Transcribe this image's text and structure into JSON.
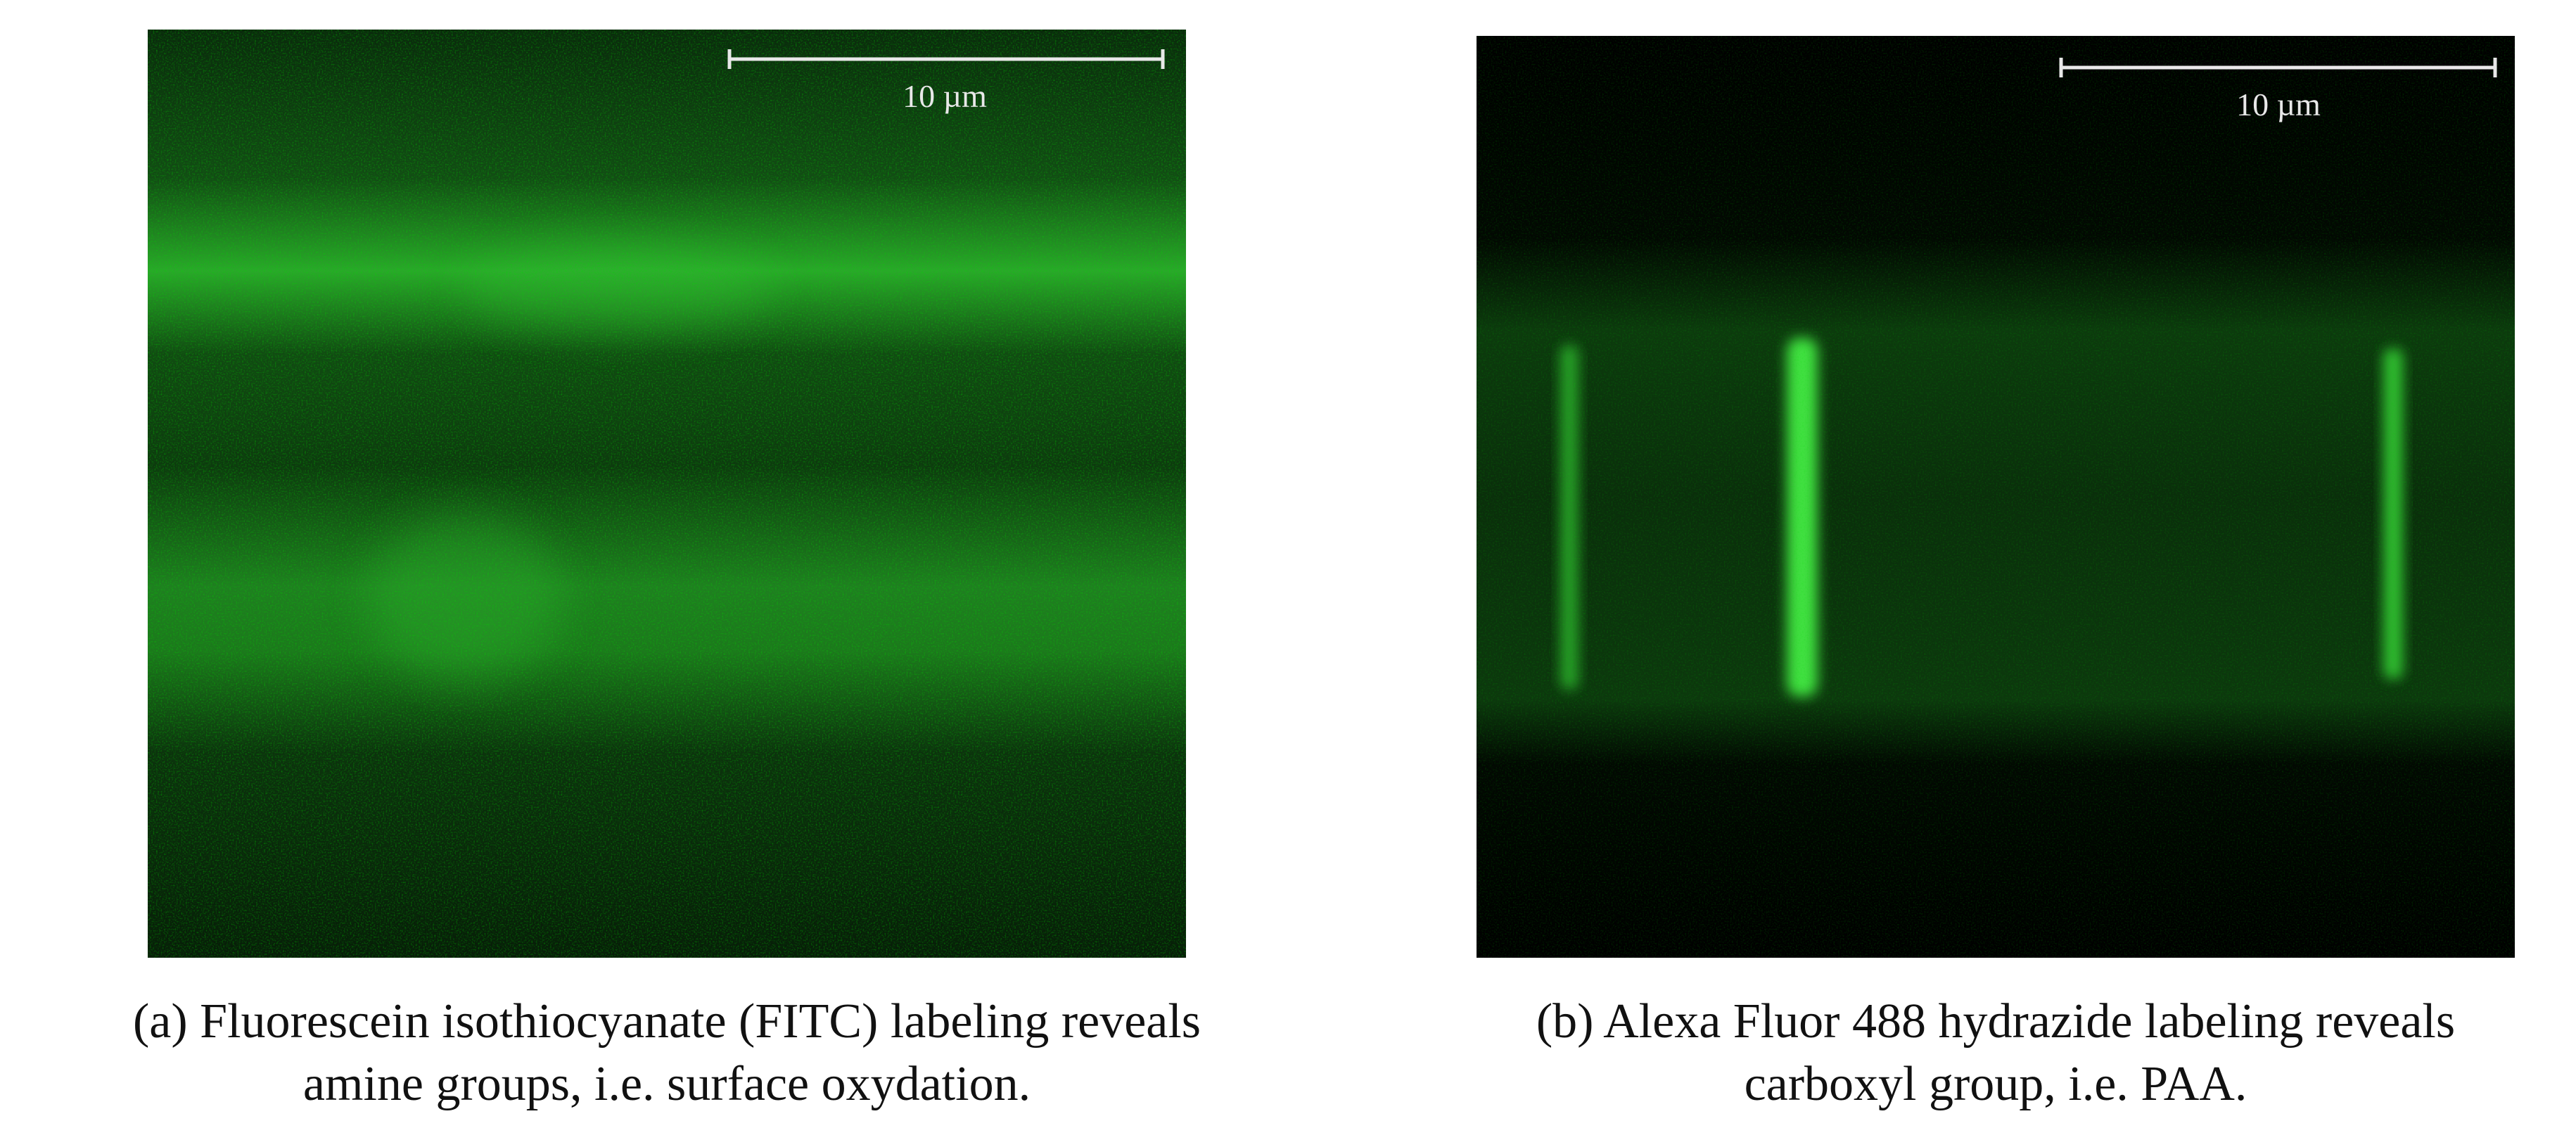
{
  "panels": [
    {
      "scale_label": "10 µm",
      "caption_lines": [
        "(a) Fluorescein isothiocyanate (FITC) labeling reveals",
        "amine groups, i.e. surface oxydation."
      ]
    },
    {
      "scale_label": "10 µm",
      "caption_lines": [
        "(b) Alexa Fluor 488 hydrazide labeling reveals",
        "carboxyl group, i.e. PAA."
      ]
    }
  ]
}
